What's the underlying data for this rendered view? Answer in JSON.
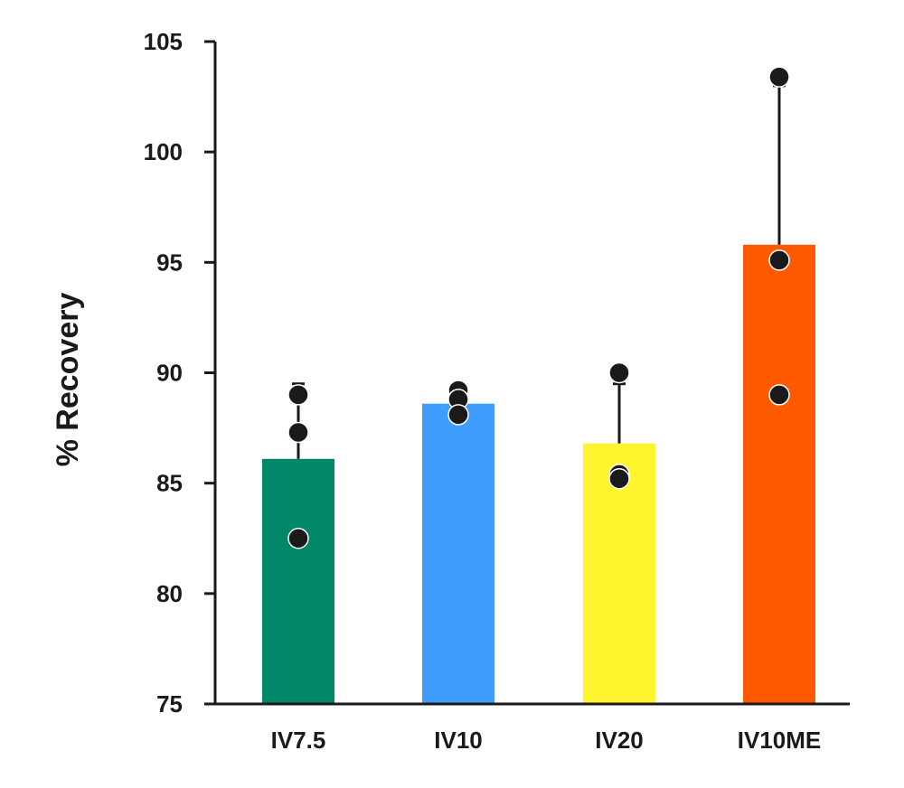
{
  "chart_data": {
    "type": "bar",
    "title": "",
    "xlabel": "",
    "ylabel": "% Recovery",
    "ylim": [
      75,
      105
    ],
    "yticks": [
      75,
      80,
      85,
      90,
      95,
      100,
      105
    ],
    "grid": false,
    "categories": [
      "IV7.5",
      "IV10",
      "IV20",
      "IV10ME"
    ],
    "values": [
      86.1,
      88.6,
      86.8,
      95.8
    ],
    "error_upper": [
      89.5,
      89.1,
      89.5,
      103.0
    ],
    "colors": [
      "#00876a",
      "#409cff",
      "#fff42e",
      "#ff5a00"
    ],
    "points": [
      [
        89.0,
        87.3,
        82.5
      ],
      [
        89.2,
        88.8,
        88.1
      ],
      [
        90.0,
        85.4,
        85.2
      ],
      [
        103.4,
        95.1,
        89.0
      ]
    ],
    "point_color": "#1a1a1a"
  }
}
